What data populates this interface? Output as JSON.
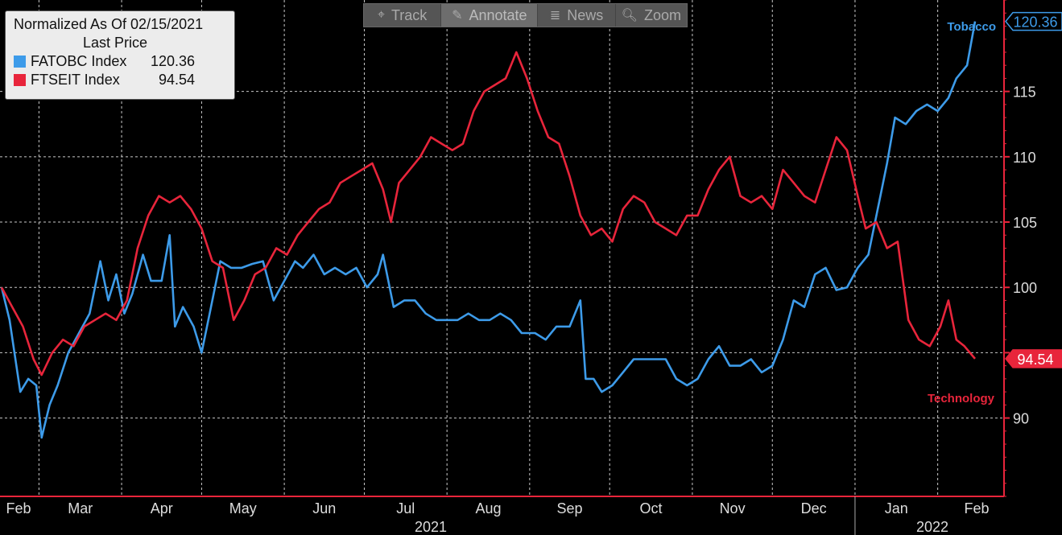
{
  "legend": {
    "title": "Normalized As Of 02/15/2021",
    "subtitle": "Last Price",
    "entries": [
      {
        "name": "FATOBC Index",
        "value": "120.36",
        "color": "#3d9be9"
      },
      {
        "name": "FTSEIT Index",
        "value": "94.54",
        "color": "#e8253b"
      }
    ]
  },
  "toolbar": {
    "items": [
      {
        "label": "Track",
        "icon": "crosshair-icon",
        "glyph": "⌖"
      },
      {
        "label": "Annotate",
        "icon": "pencil-icon",
        "glyph": "✎"
      },
      {
        "label": "News",
        "icon": "news-icon",
        "glyph": "≣"
      },
      {
        "label": "Zoom",
        "icon": "magnifier-icon",
        "glyph": "🔍︎"
      }
    ],
    "active": "Annotate"
  },
  "chart_data": {
    "type": "line",
    "x_months": [
      "Feb",
      "Mar",
      "Apr",
      "May",
      "Jun",
      "Jul",
      "Aug",
      "Sep",
      "Oct",
      "Nov",
      "Dec",
      "Jan",
      "Feb"
    ],
    "x_years": [
      "2021",
      "2022"
    ],
    "y_ticks": [
      90,
      95,
      100,
      105,
      110,
      115
    ],
    "y_tick_labels": [
      "90",
      "100",
      "105",
      "110",
      "115"
    ],
    "ylim": [
      84,
      122
    ],
    "xlim": [
      "2021-02-15",
      "2022-02-15"
    ],
    "grid": true,
    "axis_side": "right",
    "series": [
      {
        "name": "FATOBC Index",
        "label": "Tobacco",
        "last_value": "120.36",
        "color": "#3d9be9",
        "points": [
          [
            "2021-02-15",
            100.0
          ],
          [
            "2021-02-18",
            97.5
          ],
          [
            "2021-02-22",
            92.0
          ],
          [
            "2021-02-25",
            93.0
          ],
          [
            "2021-02-28",
            92.5
          ],
          [
            "2021-03-02",
            88.5
          ],
          [
            "2021-03-05",
            91.0
          ],
          [
            "2021-03-08",
            92.5
          ],
          [
            "2021-03-12",
            95.0
          ],
          [
            "2021-03-16",
            96.5
          ],
          [
            "2021-03-20",
            98.0
          ],
          [
            "2021-03-24",
            102.0
          ],
          [
            "2021-03-27",
            99.0
          ],
          [
            "2021-03-30",
            101.0
          ],
          [
            "2021-04-02",
            98.0
          ],
          [
            "2021-04-05",
            99.5
          ],
          [
            "2021-04-09",
            102.5
          ],
          [
            "2021-04-12",
            100.5
          ],
          [
            "2021-04-16",
            100.5
          ],
          [
            "2021-04-19",
            104.0
          ],
          [
            "2021-04-21",
            97.0
          ],
          [
            "2021-04-24",
            98.5
          ],
          [
            "2021-04-28",
            97.0
          ],
          [
            "2021-05-01",
            95.0
          ],
          [
            "2021-05-04",
            98.0
          ],
          [
            "2021-05-08",
            102.0
          ],
          [
            "2021-05-12",
            101.5
          ],
          [
            "2021-05-16",
            101.5
          ],
          [
            "2021-05-20",
            101.8
          ],
          [
            "2021-05-24",
            102.0
          ],
          [
            "2021-05-28",
            99.0
          ],
          [
            "2021-06-01",
            100.5
          ],
          [
            "2021-06-05",
            102.0
          ],
          [
            "2021-06-08",
            101.5
          ],
          [
            "2021-06-12",
            102.5
          ],
          [
            "2021-06-16",
            101.0
          ],
          [
            "2021-06-20",
            101.5
          ],
          [
            "2021-06-24",
            101.0
          ],
          [
            "2021-06-28",
            101.5
          ],
          [
            "2021-07-02",
            100.0
          ],
          [
            "2021-07-06",
            101.0
          ],
          [
            "2021-07-08",
            102.5
          ],
          [
            "2021-07-12",
            98.5
          ],
          [
            "2021-07-16",
            99.0
          ],
          [
            "2021-07-20",
            99.0
          ],
          [
            "2021-07-24",
            98.0
          ],
          [
            "2021-07-28",
            97.5
          ],
          [
            "2021-08-01",
            97.5
          ],
          [
            "2021-08-05",
            97.5
          ],
          [
            "2021-08-09",
            98.0
          ],
          [
            "2021-08-13",
            97.5
          ],
          [
            "2021-08-17",
            97.5
          ],
          [
            "2021-08-21",
            98.0
          ],
          [
            "2021-08-25",
            97.5
          ],
          [
            "2021-08-29",
            96.5
          ],
          [
            "2021-09-03",
            96.5
          ],
          [
            "2021-09-07",
            96.0
          ],
          [
            "2021-09-11",
            97.0
          ],
          [
            "2021-09-16",
            97.0
          ],
          [
            "2021-09-20",
            99.0
          ],
          [
            "2021-09-22",
            93.0
          ],
          [
            "2021-09-25",
            93.0
          ],
          [
            "2021-09-28",
            92.0
          ],
          [
            "2021-10-02",
            92.5
          ],
          [
            "2021-10-06",
            93.5
          ],
          [
            "2021-10-10",
            94.5
          ],
          [
            "2021-10-14",
            94.5
          ],
          [
            "2021-10-18",
            94.5
          ],
          [
            "2021-10-22",
            94.5
          ],
          [
            "2021-10-26",
            93.0
          ],
          [
            "2021-10-30",
            92.5
          ],
          [
            "2021-11-03",
            93.0
          ],
          [
            "2021-11-07",
            94.5
          ],
          [
            "2021-11-11",
            95.5
          ],
          [
            "2021-11-15",
            94.0
          ],
          [
            "2021-11-19",
            94.0
          ],
          [
            "2021-11-23",
            94.5
          ],
          [
            "2021-11-27",
            93.5
          ],
          [
            "2021-12-01",
            94.0
          ],
          [
            "2021-12-05",
            96.0
          ],
          [
            "2021-12-09",
            99.0
          ],
          [
            "2021-12-13",
            98.5
          ],
          [
            "2021-12-17",
            101.0
          ],
          [
            "2021-12-21",
            101.5
          ],
          [
            "2021-12-25",
            99.8
          ],
          [
            "2021-12-29",
            100.0
          ],
          [
            "2022-01-02",
            101.5
          ],
          [
            "2022-01-06",
            102.5
          ],
          [
            "2022-01-10",
            106.5
          ],
          [
            "2022-01-13",
            109.5
          ],
          [
            "2022-01-16",
            113.0
          ],
          [
            "2022-01-20",
            112.5
          ],
          [
            "2022-01-24",
            113.5
          ],
          [
            "2022-01-28",
            114.0
          ],
          [
            "2022-02-01",
            113.5
          ],
          [
            "2022-02-05",
            114.5
          ],
          [
            "2022-02-08",
            116.0
          ],
          [
            "2022-02-12",
            117.0
          ],
          [
            "2022-02-15",
            120.36
          ]
        ]
      },
      {
        "name": "FTSEIT Index",
        "label": "Technology",
        "last_value": "94.54",
        "color": "#e8253b",
        "points": [
          [
            "2021-02-15",
            100.0
          ],
          [
            "2021-02-19",
            98.5
          ],
          [
            "2021-02-23",
            97.0
          ],
          [
            "2021-02-27",
            94.5
          ],
          [
            "2021-03-02",
            93.3
          ],
          [
            "2021-03-06",
            95.0
          ],
          [
            "2021-03-10",
            96.0
          ],
          [
            "2021-03-14",
            95.5
          ],
          [
            "2021-03-18",
            97.0
          ],
          [
            "2021-03-22",
            97.5
          ],
          [
            "2021-03-26",
            98.0
          ],
          [
            "2021-03-30",
            97.5
          ],
          [
            "2021-04-03",
            99.0
          ],
          [
            "2021-04-07",
            103.0
          ],
          [
            "2021-04-11",
            105.5
          ],
          [
            "2021-04-15",
            107.0
          ],
          [
            "2021-04-19",
            106.5
          ],
          [
            "2021-04-23",
            107.0
          ],
          [
            "2021-04-27",
            106.0
          ],
          [
            "2021-05-01",
            104.5
          ],
          [
            "2021-05-05",
            102.0
          ],
          [
            "2021-05-09",
            101.5
          ],
          [
            "2021-05-13",
            97.5
          ],
          [
            "2021-05-17",
            99.0
          ],
          [
            "2021-05-21",
            101.0
          ],
          [
            "2021-05-25",
            101.5
          ],
          [
            "2021-05-29",
            103.0
          ],
          [
            "2021-06-02",
            102.5
          ],
          [
            "2021-06-06",
            104.0
          ],
          [
            "2021-06-10",
            105.0
          ],
          [
            "2021-06-14",
            106.0
          ],
          [
            "2021-06-18",
            106.5
          ],
          [
            "2021-06-22",
            108.0
          ],
          [
            "2021-06-26",
            108.5
          ],
          [
            "2021-06-30",
            109.0
          ],
          [
            "2021-07-04",
            109.5
          ],
          [
            "2021-07-08",
            107.5
          ],
          [
            "2021-07-11",
            105.0
          ],
          [
            "2021-07-14",
            108.0
          ],
          [
            "2021-07-18",
            109.0
          ],
          [
            "2021-07-22",
            110.0
          ],
          [
            "2021-07-26",
            111.5
          ],
          [
            "2021-07-30",
            111.0
          ],
          [
            "2021-08-03",
            110.5
          ],
          [
            "2021-08-07",
            111.0
          ],
          [
            "2021-08-11",
            113.5
          ],
          [
            "2021-08-15",
            115.0
          ],
          [
            "2021-08-19",
            115.5
          ],
          [
            "2021-08-23",
            116.0
          ],
          [
            "2021-08-27",
            118.0
          ],
          [
            "2021-08-31",
            116.0
          ],
          [
            "2021-09-04",
            113.5
          ],
          [
            "2021-09-08",
            111.5
          ],
          [
            "2021-09-12",
            111.0
          ],
          [
            "2021-09-16",
            108.5
          ],
          [
            "2021-09-20",
            105.5
          ],
          [
            "2021-09-24",
            104.0
          ],
          [
            "2021-09-28",
            104.5
          ],
          [
            "2021-10-02",
            103.5
          ],
          [
            "2021-10-06",
            106.0
          ],
          [
            "2021-10-10",
            107.0
          ],
          [
            "2021-10-14",
            106.5
          ],
          [
            "2021-10-18",
            105.0
          ],
          [
            "2021-10-22",
            104.5
          ],
          [
            "2021-10-26",
            104.0
          ],
          [
            "2021-10-30",
            105.5
          ],
          [
            "2021-11-03",
            105.5
          ],
          [
            "2021-11-07",
            107.5
          ],
          [
            "2021-11-11",
            109.0
          ],
          [
            "2021-11-15",
            110.0
          ],
          [
            "2021-11-19",
            107.0
          ],
          [
            "2021-11-23",
            106.5
          ],
          [
            "2021-11-27",
            107.0
          ],
          [
            "2021-12-01",
            106.0
          ],
          [
            "2021-12-05",
            109.0
          ],
          [
            "2021-12-09",
            108.0
          ],
          [
            "2021-12-13",
            107.0
          ],
          [
            "2021-12-17",
            106.5
          ],
          [
            "2021-12-21",
            109.0
          ],
          [
            "2021-12-25",
            111.5
          ],
          [
            "2021-12-29",
            110.5
          ],
          [
            "2022-01-02",
            107.0
          ],
          [
            "2022-01-05",
            104.5
          ],
          [
            "2022-01-09",
            105.0
          ],
          [
            "2022-01-13",
            103.0
          ],
          [
            "2022-01-17",
            103.5
          ],
          [
            "2022-01-21",
            97.5
          ],
          [
            "2022-01-25",
            96.0
          ],
          [
            "2022-01-29",
            95.5
          ],
          [
            "2022-02-02",
            97.0
          ],
          [
            "2022-02-05",
            99.0
          ],
          [
            "2022-02-08",
            96.0
          ],
          [
            "2022-02-11",
            95.5
          ],
          [
            "2022-02-15",
            94.54
          ]
        ]
      }
    ]
  }
}
